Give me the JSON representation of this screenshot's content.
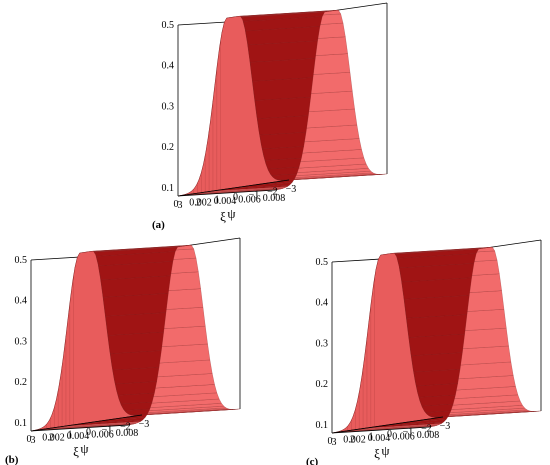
{
  "colors": {
    "surface_lit": "#f26b6b",
    "surface_front": "#e85c5c",
    "surface_shadow": "#a01414",
    "mesh": "#7a1a1a",
    "frame": "#000000"
  },
  "chart_data": [
    {
      "type": "surface",
      "panel_label": "(a)",
      "xlabel": "ξ",
      "ylabel": "ψ",
      "xlim": [
        0,
        0.008
      ],
      "ylim": [
        -3,
        3
      ],
      "zlim": [
        0.08,
        0.5
      ],
      "xticks": [
        "0",
        "0.002",
        "0.004",
        "0.006",
        "0.008"
      ],
      "yticks": [
        "3",
        "2",
        "1",
        "0",
        "−1",
        "−2",
        "−3"
      ],
      "zticks": [
        "0.1",
        "0.2",
        "0.3",
        "0.4",
        "0.5"
      ],
      "profile": {
        "form": "bell",
        "peak": 0.5,
        "floor": 0.08,
        "center_psi": 0,
        "plateau_half_width": 0.35
      }
    },
    {
      "type": "surface",
      "panel_label": "(b)",
      "xlabel": "ξ",
      "ylabel": "ψ",
      "xlim": [
        0,
        0.008
      ],
      "ylim": [
        -3,
        3
      ],
      "zlim": [
        0.08,
        0.5
      ],
      "xticks": [
        "0",
        "0.002",
        "0.004",
        "0.006",
        "0.008"
      ],
      "yticks": [
        "3",
        "2",
        "1",
        "0",
        "−1",
        "−2",
        "−3"
      ],
      "zticks": [
        "0.1",
        "0.2",
        "0.3",
        "0.4",
        "0.5"
      ],
      "profile": {
        "form": "bell",
        "peak": 0.5,
        "floor": 0.08,
        "center_psi": 0,
        "plateau_half_width": 0.35
      }
    },
    {
      "type": "surface",
      "panel_label": "(c)",
      "xlabel": "ξ",
      "ylabel": "ψ",
      "xlim": [
        0,
        0.008
      ],
      "ylim": [
        -3,
        3
      ],
      "zlim": [
        0.08,
        0.5
      ],
      "xticks": [
        "0",
        "0.002",
        "0.004",
        "0.006",
        "0.008"
      ],
      "yticks": [
        "3",
        "2",
        "1",
        "0",
        "−1",
        "−2",
        "−3"
      ],
      "zticks": [
        "0.1",
        "0.2",
        "0.3",
        "0.4",
        "0.5"
      ],
      "profile": {
        "form": "bell",
        "peak": 0.5,
        "floor": 0.08,
        "center_psi": 0,
        "plateau_half_width": 0.35
      }
    }
  ]
}
